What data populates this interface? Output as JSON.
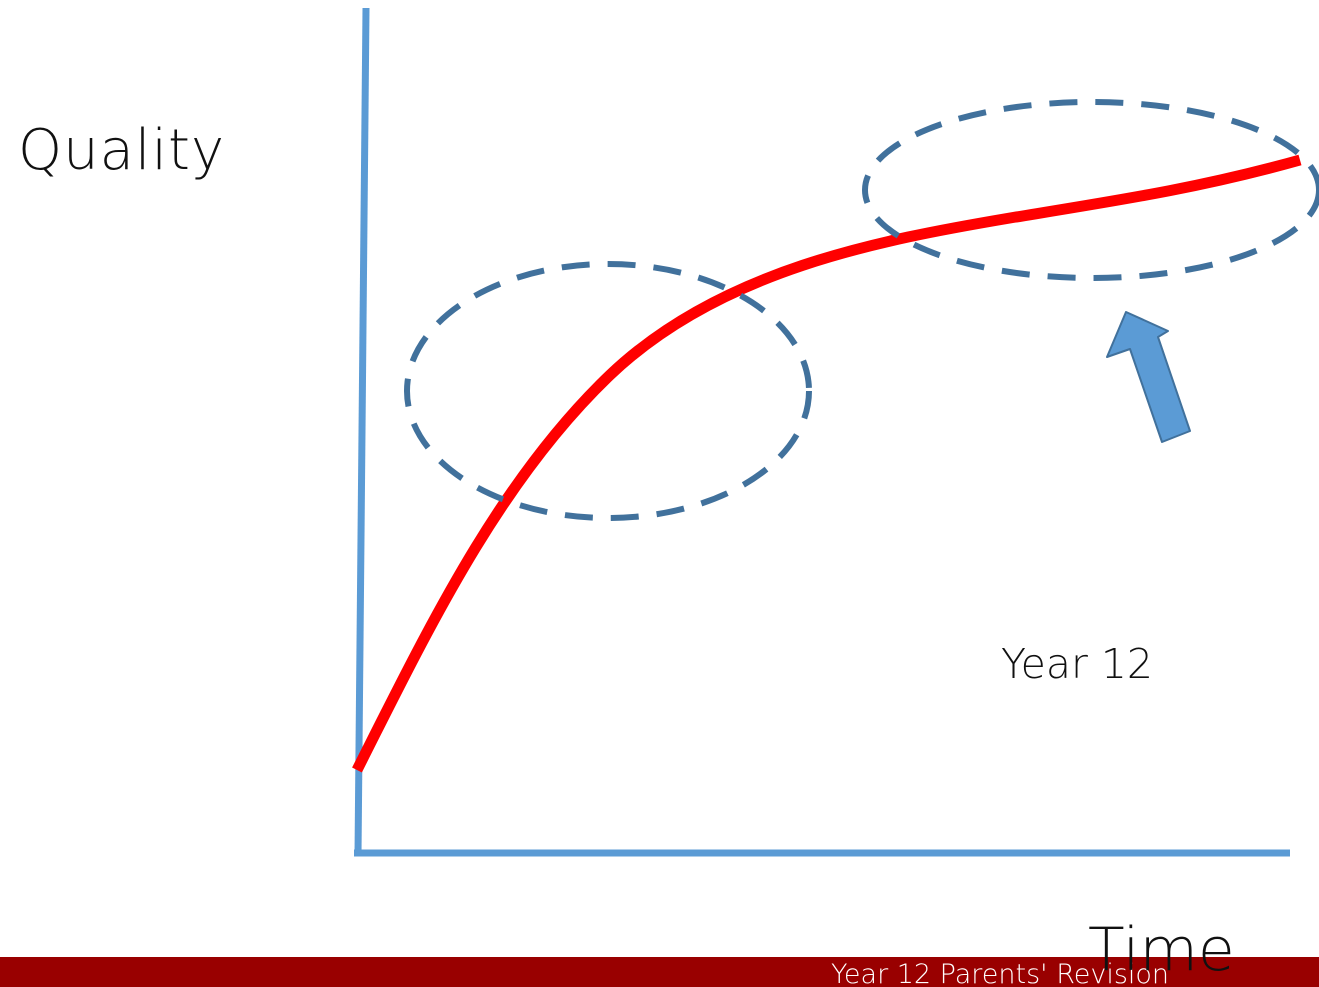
{
  "slide": {
    "y_axis_label": "Quality",
    "x_axis_label": "Time",
    "annotation": "Year 12",
    "footer_text": "Year 12 Parents' Revision",
    "colors": {
      "axis": "#5b9bd5",
      "curve": "#ff0000",
      "dashed_ellipse": "#41719c",
      "arrow": "#5b9bd5",
      "footer_bar": "#990000",
      "footer_text": "#ffffff"
    },
    "shapes": {
      "curve": "red growth curve rising steeply then flattening",
      "highlights": [
        "dashed-ellipse-left",
        "dashed-ellipse-right"
      ],
      "pointer": "arrow-up-left-icon"
    }
  }
}
